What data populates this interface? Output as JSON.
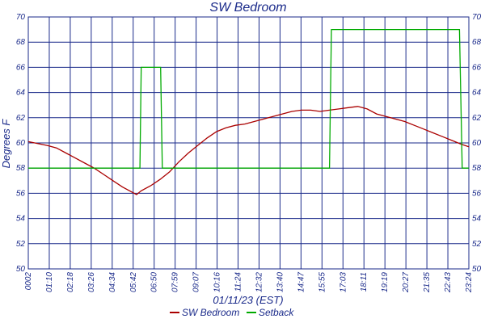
{
  "chart_data": {
    "type": "line",
    "title": "SW Bedroom",
    "xlabel": "01/11/23 (EST)",
    "ylabel": "Degrees F",
    "ylim": [
      50,
      70
    ],
    "yticks": [
      "50",
      "52",
      "54",
      "56",
      "58",
      "60",
      "62",
      "64",
      "66",
      "68",
      "70"
    ],
    "x_ticks": [
      "0002",
      "01:10",
      "02:18",
      "03:26",
      "04:34",
      "05:42",
      "06:50",
      "07:59",
      "09:07",
      "10:16",
      "11:24",
      "12:32",
      "13:40",
      "14:47",
      "15:55",
      "17:03",
      "18:11",
      "19:19",
      "20:27",
      "21:35",
      "22:43",
      "23:24"
    ],
    "grid": true,
    "legend_position": "bottom",
    "colors": {
      "grid": "#1a2a8a",
      "text": "#1a2a8a",
      "sw_bedroom": "#aa0000",
      "setback": "#00aa00"
    },
    "series": [
      {
        "name": "SW Bedroom",
        "color": "#aa0000",
        "points": [
          [
            0,
            60.1
          ],
          [
            1,
            59.8
          ],
          [
            1.5,
            59.6
          ],
          [
            2,
            59.2
          ],
          [
            2.5,
            58.8
          ],
          [
            3,
            58.4
          ],
          [
            3.5,
            58.0
          ],
          [
            4,
            57.5
          ],
          [
            4.5,
            57.0
          ],
          [
            5,
            56.5
          ],
          [
            5.5,
            56.1
          ],
          [
            5.75,
            55.9
          ],
          [
            6,
            56.2
          ],
          [
            6.5,
            56.6
          ],
          [
            7,
            57.1
          ],
          [
            7.5,
            57.7
          ],
          [
            8,
            58.5
          ],
          [
            8.5,
            59.2
          ],
          [
            9,
            59.8
          ],
          [
            9.5,
            60.4
          ],
          [
            10,
            60.9
          ],
          [
            10.5,
            61.2
          ],
          [
            11,
            61.4
          ],
          [
            11.5,
            61.5
          ],
          [
            12,
            61.7
          ],
          [
            12.5,
            61.9
          ],
          [
            13,
            62.1
          ],
          [
            13.5,
            62.3
          ],
          [
            14,
            62.5
          ],
          [
            14.5,
            62.6
          ],
          [
            15,
            62.6
          ],
          [
            15.5,
            62.5
          ],
          [
            16,
            62.6
          ],
          [
            16.5,
            62.7
          ],
          [
            17,
            62.8
          ],
          [
            17.5,
            62.9
          ],
          [
            18,
            62.7
          ],
          [
            18.5,
            62.3
          ],
          [
            19,
            62.1
          ],
          [
            19.5,
            61.9
          ],
          [
            20,
            61.7
          ],
          [
            20.5,
            61.4
          ],
          [
            21,
            61.1
          ],
          [
            21.5,
            60.8
          ],
          [
            22,
            60.5
          ],
          [
            22.5,
            60.2
          ],
          [
            23,
            59.9
          ],
          [
            23.4,
            59.7
          ]
        ]
      },
      {
        "name": "Setback",
        "color": "#00aa00",
        "points": [
          [
            0,
            58
          ],
          [
            5.93,
            58
          ],
          [
            6.0,
            66
          ],
          [
            7.03,
            66
          ],
          [
            7.12,
            58
          ],
          [
            16.0,
            58
          ],
          [
            16.1,
            69
          ],
          [
            22.9,
            69
          ],
          [
            23.05,
            58
          ],
          [
            23.4,
            58
          ]
        ]
      }
    ]
  }
}
